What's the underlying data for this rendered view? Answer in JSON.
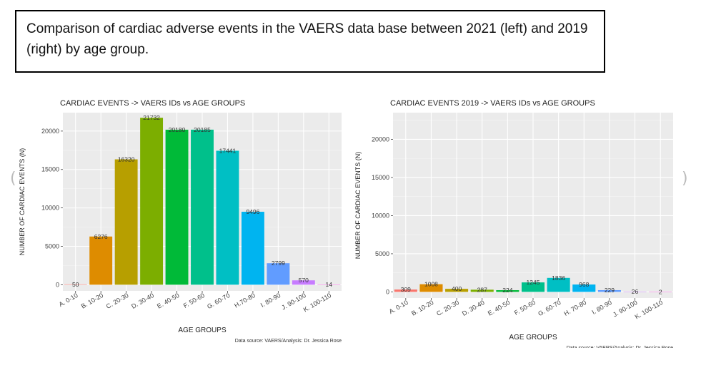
{
  "caption": "Comparison of cardiac adverse events in the VAERS data base between 2021 (left) and 2019 (right) by age group.",
  "chart_data": [
    {
      "type": "bar",
      "title": "CARDIAC EVENTS -> VAERS IDs vs AGE GROUPS",
      "xlabel": "AGE GROUPS",
      "ylabel": "NUMBER OF CARDIAC EVENTS (N)",
      "source": "Data source: VAERS/Analysis: Dr. Jessica Rose",
      "categories": [
        "A. 0-10",
        "B. 10-20",
        "C. 20-30",
        "D. 30-40",
        "E. 40-50",
        "F. 50-60",
        "G. 60-70",
        "H.70-80",
        "I. 80-90",
        "J. 90-100",
        "K. 100-110"
      ],
      "values": [
        50,
        6276,
        16320,
        21732,
        20180,
        20185,
        17441,
        9496,
        2799,
        570,
        14
      ],
      "labels": [
        "50",
        "6276",
        "16320",
        "21732",
        "20180",
        "20185",
        "17441",
        "9496",
        "2799",
        "570",
        "14"
      ],
      "colors": [
        "#f8766d",
        "#de8c00",
        "#b79f00",
        "#7cae00",
        "#00ba38",
        "#00c08b",
        "#00bfc4",
        "#00b4f0",
        "#619cff",
        "#c77cff",
        "#f564e3"
      ],
      "yticks": [
        0,
        5000,
        10000,
        15000,
        20000
      ],
      "ylim": [
        -800,
        22400
      ],
      "grid": true
    },
    {
      "type": "bar",
      "title": "CARDIAC EVENTS 2019 -> VAERS IDs vs AGE GROUPS",
      "xlabel": "AGE GROUPS",
      "ylabel": "NUMBER OF CARDIAC EVENTS (N)",
      "source": "Data source: VAERS/Analysis: Dr. Jessica Rose",
      "categories": [
        "A. 0-10",
        "B. 10-20",
        "C. 20-30",
        "D. 30-40",
        "E. 40-50",
        "F. 50-60",
        "G. 60-70",
        "H. 70-80",
        "I. 80-90",
        "J. 90-100",
        "K. 100-110"
      ],
      "values": [
        309,
        1008,
        400,
        287,
        224,
        1245,
        1836,
        968,
        229,
        26,
        2
      ],
      "labels": [
        "309",
        "1008",
        "400",
        "287",
        "224",
        "1245",
        "1836",
        "968",
        "229",
        "26",
        "2"
      ],
      "colors": [
        "#f8766d",
        "#de8c00",
        "#b79f00",
        "#7cae00",
        "#00ba38",
        "#00c08b",
        "#00bfc4",
        "#00b4f0",
        "#619cff",
        "#c77cff",
        "#f564e3"
      ],
      "yticks": [
        0,
        5000,
        10000,
        15000,
        20000
      ],
      "ylim": [
        -800,
        23500
      ],
      "grid": true
    }
  ]
}
